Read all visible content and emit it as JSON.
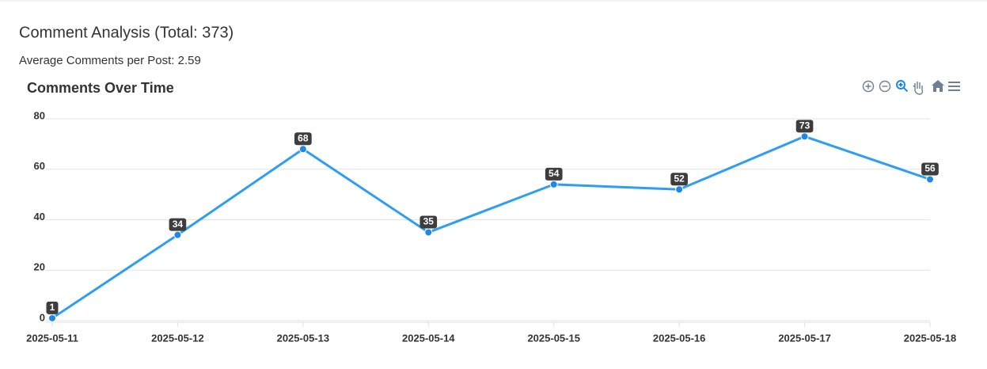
{
  "header": {
    "title": "Comment Analysis (Total: 373)",
    "subtitle": "Average Comments per Post: 2.59"
  },
  "chart_data": {
    "type": "line",
    "title": "Comments Over Time",
    "categories": [
      "2025-05-11",
      "2025-05-12",
      "2025-05-13",
      "2025-05-14",
      "2025-05-15",
      "2025-05-16",
      "2025-05-17",
      "2025-05-18"
    ],
    "values": [
      1,
      34,
      68,
      35,
      54,
      52,
      73,
      56
    ],
    "color": "#2e9ef4",
    "ylim": [
      0,
      80
    ],
    "yticks": [
      0,
      20,
      40,
      60,
      80
    ],
    "grid": true,
    "data_labels": true
  }
}
